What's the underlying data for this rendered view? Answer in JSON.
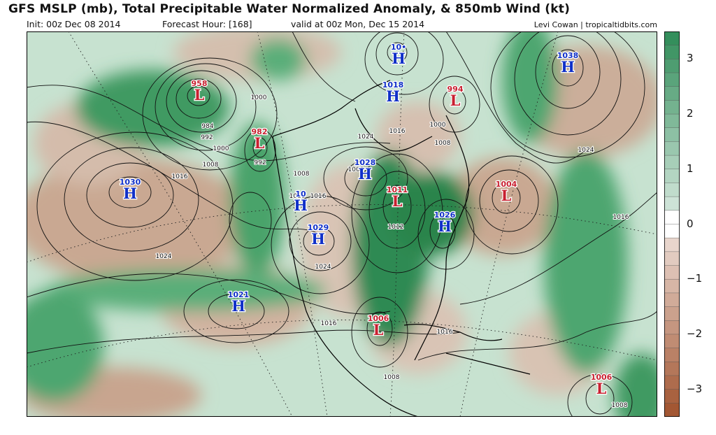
{
  "header": {
    "title": "GFS MSLP (mb), Total Precipitable Water Normalized Anomaly, & 850mb Wind (kt)",
    "init": "Init: 00z Dec 08 2014",
    "forecast_hour": "Forecast Hour: [168]",
    "valid": "valid at 00z Mon, Dec 15 2014",
    "credit": "Levi Cowan | tropicaltidbits.com"
  },
  "colors": {
    "high": "#1030c8",
    "low": "#c82030",
    "wet": "#2e8b57",
    "dry": "#a0522d"
  },
  "colorbar": {
    "ticks": [
      "3",
      "2",
      "1",
      "0",
      "−1",
      "−2",
      "−3"
    ],
    "range": [
      -3.5,
      3.5
    ]
  },
  "pressure_centers": [
    {
      "type": "L",
      "letter": "L",
      "value": "958"
    },
    {
      "type": "L",
      "letter": "L",
      "value": "982"
    },
    {
      "type": "H",
      "letter": "H",
      "value": "1030"
    },
    {
      "type": "H",
      "letter": "H",
      "value": "1021"
    },
    {
      "type": "H",
      "letter": "H",
      "value": "10"
    },
    {
      "type": "H",
      "letter": "H",
      "value": "1029"
    },
    {
      "type": "H",
      "letter": "H",
      "value": "1028"
    },
    {
      "type": "H",
      "letter": "H",
      "value": "1018"
    },
    {
      "type": "H",
      "letter": "H",
      "value": "10•"
    },
    {
      "type": "L",
      "letter": "L",
      "value": "994"
    },
    {
      "type": "H",
      "letter": "H",
      "value": "1038"
    },
    {
      "type": "L",
      "letter": "L",
      "value": "1011"
    },
    {
      "type": "H",
      "letter": "H",
      "value": "1026"
    },
    {
      "type": "L",
      "letter": "L",
      "value": "1004"
    },
    {
      "type": "L",
      "letter": "L",
      "value": "1006"
    },
    {
      "type": "L",
      "letter": "L",
      "value": "1006"
    }
  ],
  "isobar_labels": [
    "1000",
    "984",
    "992",
    "1000",
    "1008",
    "1016",
    "992",
    "1008",
    "1016",
    "1024",
    "1024",
    "1016",
    "1024",
    "1000",
    "1008",
    "1024",
    "1016",
    "1016",
    "1008",
    "1016",
    "1008",
    "1016",
    "1012",
    "1008"
  ]
}
